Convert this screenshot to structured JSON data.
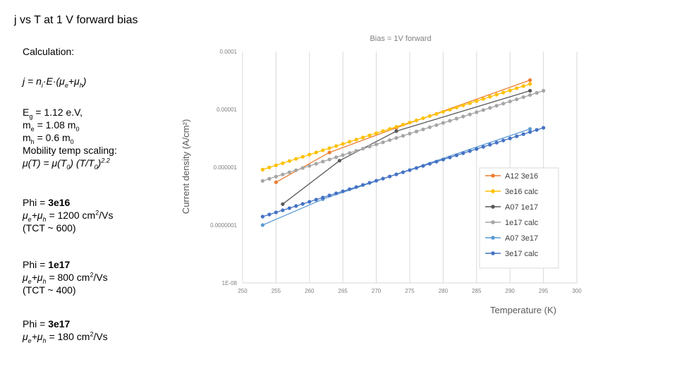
{
  "slide": {
    "title": "j vs T at 1 V forward bias"
  },
  "notes": {
    "calc_label": "Calculation:",
    "formula": {
      "j": "j = n",
      "sub_i": "i",
      "mid": "·E·(μ",
      "sub_e": "e",
      "plus": "+μ",
      "sub_h": "h",
      "end": ")"
    },
    "params": {
      "eg_pre": "E",
      "eg_sub": "g",
      "eg_post": " = 1.12 e.V,",
      "me_pre": "m",
      "me_sub": "e",
      "me_mid": " = 1.08 m",
      "me_sub0": "0",
      "mh_pre": "m",
      "mh_sub": "h",
      "mh_mid": " = 0.6 m",
      "mh_sub0": "0",
      "mobility_label": "Mobility temp scaling:",
      "mu_pre": "μ(T) = μ(T",
      "mu_sub0": "0",
      "mu_mid": ") (T/T",
      "mu_sub0b": "0",
      "mu_close": ")",
      "mu_exp": "2.2"
    },
    "phi1": {
      "title_pre": "Phi = ",
      "title_val": "3e16",
      "mu_a": " μ",
      "sub_e": "e",
      "mu_b": "+μ",
      "sub_h": "h",
      "val": " = 1200 cm",
      "sup": "2",
      "unit": "/Vs",
      "tct": "(TCT ~ 600)"
    },
    "phi2": {
      "title_pre": "Phi = ",
      "title_val": "1e17",
      "mu_a": "μ",
      "sub_e": "e",
      "mu_b": "+μ",
      "sub_h": "h",
      "val": " = 800 cm",
      "sup": "2",
      "unit": "/Vs",
      "tct": "(TCT ~ 400)"
    },
    "phi3": {
      "title_pre": "Phi = ",
      "title_val": "3e17",
      "mu_a": "μ",
      "sub_e": "e",
      "mu_b": "+μ",
      "sub_h": "h",
      "val": " = 180 cm",
      "sup": "2",
      "unit": "/Vs"
    }
  },
  "chart_data": {
    "type": "line",
    "title": "Bias = 1V forward",
    "xlabel": "Temperature (K)",
    "ylabel": "Current density (A/cm²)",
    "xlim": [
      250,
      300
    ],
    "ylim": [
      1e-08,
      0.0001
    ],
    "yscale": "log",
    "xticks": [
      250,
      255,
      260,
      265,
      270,
      275,
      280,
      285,
      290,
      295,
      300
    ],
    "yticks": [
      1e-08,
      1e-07,
      1e-06,
      1e-05,
      0.0001
    ],
    "ytick_labels": [
      "1E-08",
      "0.0000001",
      "0.000001",
      "0.00001",
      "0.0001"
    ],
    "grid": "vertical",
    "legend_position": "right",
    "series": [
      {
        "name": "A12 3e16",
        "color": "#ed7d31",
        "x": [
          255,
          263,
          273,
          293
        ],
        "y": [
          5.5e-07,
          1.8e-06,
          4.8e-06,
          3.2e-05
        ]
      },
      {
        "name": "3e16 calc",
        "color": "#ffc000",
        "x": [
          253,
          293
        ],
        "y": [
          9.1e-07,
          2.75e-05
        ],
        "count": 41
      },
      {
        "name": "A07 1e17",
        "color": "#595959",
        "x": [
          256,
          264.5,
          273,
          293
        ],
        "y": [
          2.3e-07,
          1.3e-06,
          4.2e-06,
          2.1e-05
        ]
      },
      {
        "name": "1e17 calc",
        "color": "#a5a5a5",
        "x": [
          253,
          295
        ],
        "y": [
          5.8e-07,
          2.1e-05
        ],
        "count": 43
      },
      {
        "name": "A07 3e17",
        "color": "#5b9bd5",
        "x": [
          253,
          262,
          293
        ],
        "y": [
          1e-07,
          2.8e-07,
          4.6e-06
        ]
      },
      {
        "name": "3e17 calc",
        "color": "#4472c4",
        "x": [
          253,
          295
        ],
        "y": [
          1.4e-07,
          4.8e-06
        ],
        "count": 43
      }
    ]
  }
}
